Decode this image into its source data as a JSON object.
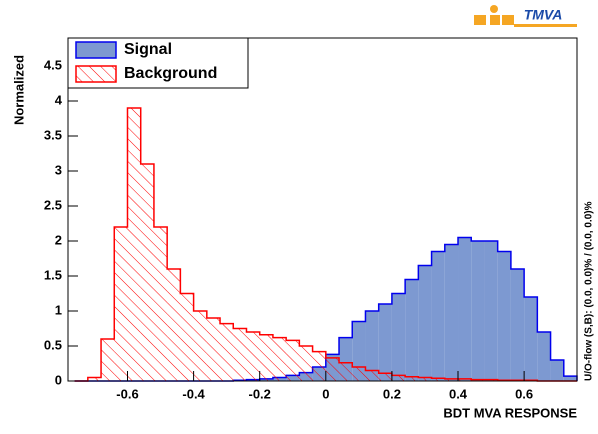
{
  "chart_data": {
    "type": "histogram",
    "logo": "TMVA",
    "xlabel": "BDT MVA RESPONSE",
    "ylabel": "Normalized",
    "side_note": "U/O-flow (S,B): (0.0, 0.0)% / (0.0, 0.0)%",
    "bins": [
      -0.76,
      -0.72,
      -0.68,
      -0.64,
      -0.6,
      -0.56,
      -0.52,
      -0.48,
      -0.44,
      -0.4,
      -0.36,
      -0.32,
      -0.28,
      -0.24,
      -0.2,
      -0.16,
      -0.12,
      -0.08,
      -0.04,
      0,
      0.04,
      0.08,
      0.12,
      0.16,
      0.2,
      0.24,
      0.28,
      0.32,
      0.36,
      0.4,
      0.44,
      0.48,
      0.52,
      0.56,
      0.6,
      0.64,
      0.68,
      0.72,
      0.76
    ],
    "series": [
      {
        "name": "Signal",
        "color": "#7d99d1",
        "edge": "#0000ee",
        "hatch": false,
        "values": [
          0,
          0,
          0,
          0,
          0,
          0,
          0,
          0,
          0,
          0,
          0,
          0,
          0.01,
          0.02,
          0.03,
          0.05,
          0.08,
          0.12,
          0.2,
          0.38,
          0.62,
          0.85,
          1.0,
          1.1,
          1.25,
          1.45,
          1.65,
          1.85,
          1.95,
          2.05,
          2.0,
          2.0,
          1.85,
          1.6,
          1.2,
          0.7,
          0.3,
          0.07
        ]
      },
      {
        "name": "Background",
        "color": "#ff0000",
        "edge": "#ff0000",
        "hatch": true,
        "values": [
          0,
          0.05,
          0.6,
          2.2,
          3.9,
          3.1,
          2.2,
          1.6,
          1.25,
          1.0,
          0.9,
          0.82,
          0.75,
          0.7,
          0.66,
          0.62,
          0.58,
          0.5,
          0.42,
          0.33,
          0.26,
          0.2,
          0.15,
          0.11,
          0.08,
          0.06,
          0.05,
          0.04,
          0.03,
          0.03,
          0.02,
          0.02,
          0.01,
          0.01,
          0.01,
          0,
          0,
          0
        ]
      }
    ],
    "xlim": [
      -0.78,
      0.76
    ],
    "ylim": [
      0,
      4.9
    ],
    "xticks": [
      -0.6,
      -0.4,
      -0.2,
      0,
      0.2,
      0.4,
      0.6
    ],
    "yticks": [
      0,
      0.5,
      1,
      1.5,
      2,
      2.5,
      3,
      3.5,
      4,
      4.5
    ],
    "legend": "top-left"
  }
}
